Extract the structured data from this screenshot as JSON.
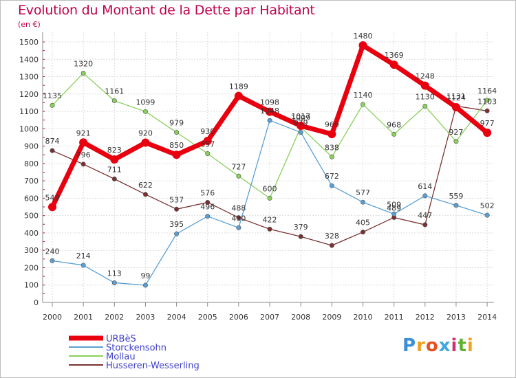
{
  "chart_data": {
    "type": "line",
    "title": "Evolution du Montant de la Dette par Habitant",
    "subtitle": "(en €)",
    "x": [
      "2000",
      "2001",
      "2002",
      "2003",
      "2004",
      "2005",
      "2006",
      "2007",
      "2008",
      "2009",
      "2010",
      "2011",
      "2012",
      "2013",
      "2014"
    ],
    "y_ticks": [
      0,
      100,
      200,
      300,
      400,
      500,
      600,
      700,
      800,
      900,
      1000,
      1100,
      1200,
      1300,
      1400,
      1500
    ],
    "ylim": [
      0,
      1500
    ],
    "grid": true,
    "legend_position": "bottom-left",
    "series": [
      {
        "name": "URBèS",
        "color": "#e8000f",
        "values": [
          549,
          921,
          823,
          920,
          850,
          930,
          1189,
          1098,
          1017,
          969,
          1480,
          1369,
          1248,
          1124,
          977
        ],
        "labels": [
          "549",
          "921",
          "823",
          "920",
          "850",
          "930",
          "1189",
          "1098",
          "1017",
          "969",
          "1480",
          "1369",
          "1248",
          "1124",
          "977"
        ]
      },
      {
        "name": "Storckensohn",
        "color": "#5a9fd4",
        "values": [
          240,
          214,
          113,
          99,
          395,
          496,
          430,
          1048,
          979,
          672,
          577,
          509,
          614,
          559,
          502
        ],
        "labels": [
          "240",
          "214",
          "113",
          "99",
          "395",
          "496",
          "430",
          "1048",
          "979",
          "672",
          "577",
          "509",
          "614",
          "559",
          "502"
        ]
      },
      {
        "name": "Mollau",
        "color": "#88d05a",
        "values": [
          1135,
          1320,
          1161,
          1099,
          979,
          857,
          727,
          600,
          1009,
          838,
          1140,
          968,
          1130,
          927,
          1164
        ],
        "labels": [
          "1135",
          "1320",
          "1161",
          "1099",
          "979",
          "857",
          "727",
          "600",
          "1009",
          "838",
          "1140",
          "968",
          "1130",
          "927",
          "1164"
        ]
      },
      {
        "name": "Husseren-Wesserling",
        "color": "#7a3030",
        "values": [
          874,
          796,
          711,
          622,
          537,
          576,
          488,
          422,
          379,
          328,
          405,
          489,
          447,
          1131,
          1103
        ],
        "labels": [
          "874",
          "796",
          "711",
          "622",
          "537",
          "576",
          "488",
          "422",
          "379",
          "328",
          "405",
          "489",
          "447",
          "1131",
          "1103"
        ]
      }
    ]
  },
  "logo": {
    "letters": [
      "P",
      "r",
      "o",
      "x",
      "i",
      "t",
      "i"
    ]
  }
}
